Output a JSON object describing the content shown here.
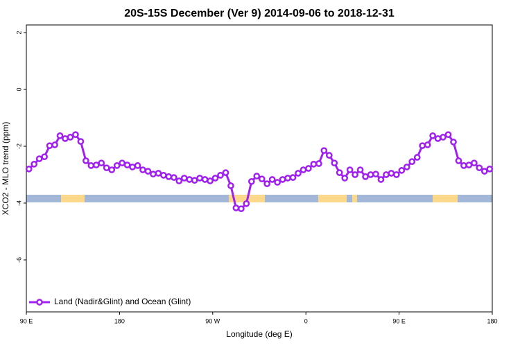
{
  "chart_data": {
    "type": "line",
    "title": "20S-15S December (Ver 9)   2014-09-06 to 2018-12-31",
    "xlabel": "Longitude (deg E)",
    "ylabel": "XCO2 - MLO trend (ppm)",
    "x": [
      92.5,
      97.5,
      102.5,
      107.5,
      112.5,
      117.5,
      122.5,
      127.5,
      132.5,
      137.5,
      142.5,
      147.5,
      152.5,
      157.5,
      162.5,
      167.5,
      172.5,
      177.5,
      182.5,
      187.5,
      192.5,
      197.5,
      202.5,
      207.5,
      212.5,
      217.5,
      222.5,
      227.5,
      232.5,
      237.5,
      242.5,
      247.5,
      252.5,
      257.5,
      262.5,
      267.5,
      272.5,
      277.5,
      282.5,
      287.5,
      292.5,
      297.5,
      302.5,
      307.5,
      312.5,
      317.5,
      322.5,
      327.5,
      332.5,
      337.5,
      342.5,
      347.5,
      352.5,
      357.5,
      362.5,
      367.5,
      372.5,
      377.5,
      382.5,
      387.5,
      392.5,
      397.5,
      402.5,
      407.5,
      412.5,
      417.5,
      422.5,
      427.5,
      432.5,
      437.5,
      442.5,
      447.5,
      452.5,
      457.5,
      462.5,
      467.5,
      472.5,
      477.5,
      482.5,
      487.5,
      492.5,
      497.5,
      502.5,
      507.5,
      512.5,
      517.5,
      522.5,
      527.5,
      532.5,
      537.5
    ],
    "series": [
      {
        "name": "Land (Nadir&Glint) and Ocean (Glint)",
        "color": "#a020f0",
        "values": [
          -2.8,
          -2.63,
          -2.44,
          -2.37,
          -1.98,
          -1.95,
          -1.63,
          -1.73,
          -1.68,
          -1.59,
          -1.83,
          -2.51,
          -2.68,
          -2.66,
          -2.59,
          -2.76,
          -2.83,
          -2.68,
          -2.59,
          -2.66,
          -2.73,
          -2.68,
          -2.83,
          -2.88,
          -2.98,
          -2.95,
          -3.02,
          -3.07,
          -3.1,
          -3.22,
          -3.12,
          -3.17,
          -3.2,
          -3.12,
          -3.17,
          -3.22,
          -3.12,
          -3.02,
          -2.93,
          -3.39,
          -4.17,
          -4.2,
          -4.02,
          -3.24,
          -3.05,
          -3.15,
          -3.32,
          -3.17,
          -3.27,
          -3.17,
          -3.12,
          -3.1,
          -2.95,
          -2.83,
          -2.78,
          -2.63,
          -2.61,
          -2.15,
          -2.32,
          -2.59,
          -2.93,
          -3.12,
          -2.83,
          -3.0,
          -2.83,
          -3.07,
          -3.0,
          -2.98,
          -3.17,
          -3.0,
          -2.95,
          -3.0,
          -2.85,
          -2.73,
          -2.54,
          -2.39,
          -1.98,
          -1.95,
          -1.63,
          -1.73,
          -1.68,
          -1.59,
          -1.85,
          -2.51,
          -2.68,
          -2.66,
          -2.59,
          -2.76,
          -2.88,
          -2.8
        ]
      }
    ],
    "xlim": [
      90,
      540
    ],
    "xticks": [
      {
        "value": 90,
        "label": "90 E"
      },
      {
        "value": 180,
        "label": "180"
      },
      {
        "value": 270,
        "label": "90 W"
      },
      {
        "value": 360,
        "label": "0"
      },
      {
        "value": 450,
        "label": "90 E"
      },
      {
        "value": 540,
        "label": "180"
      }
    ],
    "ylim": [
      -7.83,
      2.27
    ],
    "yticks": [
      2,
      0,
      -2,
      -4,
      -6
    ],
    "legend": "bottom-left"
  }
}
